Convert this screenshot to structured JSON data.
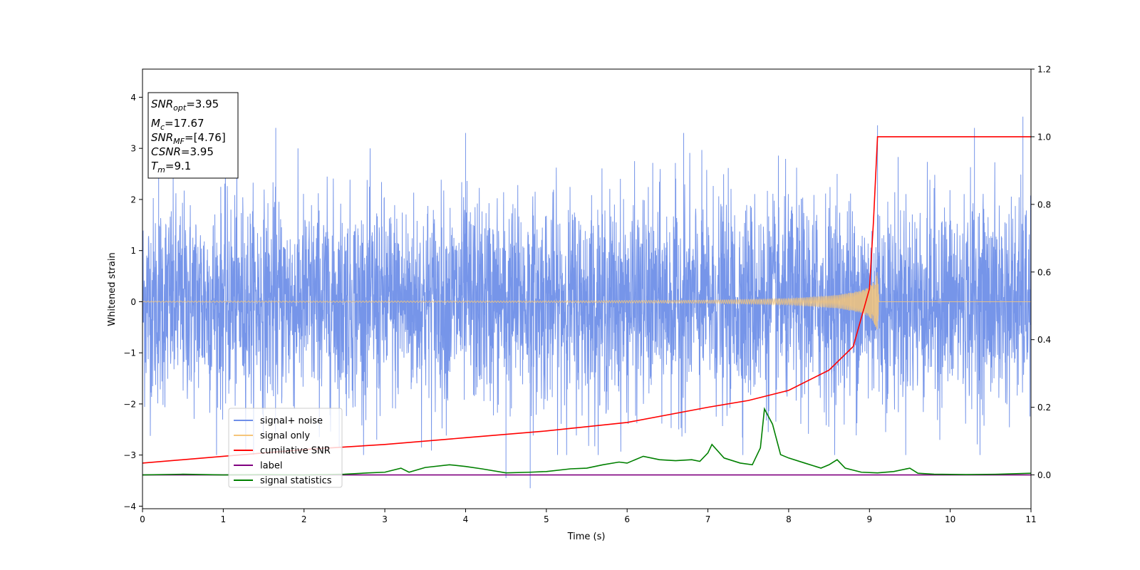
{
  "chart_data": {
    "type": "line",
    "xlabel": "Time (s)",
    "ylabel": "Whitened strain",
    "xlim": [
      0,
      11
    ],
    "ylim": [
      -4.05,
      4.55
    ],
    "y2lim": [
      -0.1,
      1.2
    ],
    "x_ticks": [
      "0",
      "1",
      "2",
      "3",
      "4",
      "5",
      "6",
      "7",
      "8",
      "9",
      "10",
      "11"
    ],
    "y_ticks": [
      "−4",
      "−3",
      "−2",
      "−1",
      "0",
      "1",
      "2",
      "3",
      "4"
    ],
    "y2_ticks": [
      "0.0",
      "0.2",
      "0.4",
      "0.6",
      "0.8",
      "1.0",
      "1.2"
    ],
    "grid": false,
    "legend_position": "lower-left",
    "annotation": {
      "snr_opt": {
        "label": "SNR",
        "sub": "opt",
        "value": "=3.95"
      },
      "mc": {
        "label": "M",
        "sub": "c",
        "value": "=17.67"
      },
      "snr_mf": {
        "label": "SNR",
        "sub": "MF",
        "value": "=[4.76]"
      },
      "csnr": {
        "label": "CSNR",
        "value": "=3.95"
      },
      "tm": {
        "label": "T",
        "sub": "m",
        "value": "=9.1"
      }
    },
    "series": [
      {
        "name": "signal+ noise",
        "color": "#6f8fe8",
        "axis": "left",
        "description_values": {
          "mean": 0,
          "std": 1,
          "range": [
            -3.65,
            3.62
          ]
        },
        "peaks": [
          [
            0.2,
            3.3
          ],
          [
            1.65,
            3.4
          ],
          [
            2.9,
            -2.7
          ],
          [
            4.0,
            3.3
          ],
          [
            4.5,
            -3.45
          ],
          [
            4.8,
            -3.65
          ],
          [
            6.7,
            3.3
          ],
          [
            8.6,
            2.5
          ],
          [
            9.1,
            3.45
          ],
          [
            10.3,
            3.4
          ],
          [
            10.9,
            3.62
          ]
        ]
      },
      {
        "name": "signal only",
        "color": "#f5c57a",
        "axis": "left",
        "amplitude_points": [
          [
            0,
            0.01
          ],
          [
            5,
            0.015
          ],
          [
            7,
            0.03
          ],
          [
            8,
            0.06
          ],
          [
            8.6,
            0.13
          ],
          [
            8.9,
            0.22
          ],
          [
            9.0,
            0.3
          ],
          [
            9.05,
            0.4
          ],
          [
            9.1,
            0.6
          ],
          [
            9.12,
            0.0
          ],
          [
            11,
            0.0
          ]
        ]
      },
      {
        "name": "cumilative SNR",
        "color": "#ff0000",
        "axis": "right",
        "points": [
          [
            0,
            0.035
          ],
          [
            1,
            0.055
          ],
          [
            2,
            0.075
          ],
          [
            3,
            0.09
          ],
          [
            4,
            0.11
          ],
          [
            5,
            0.13
          ],
          [
            6,
            0.155
          ],
          [
            7,
            0.2
          ],
          [
            7.5,
            0.22
          ],
          [
            8,
            0.25
          ],
          [
            8.5,
            0.31
          ],
          [
            8.8,
            0.38
          ],
          [
            9.0,
            0.55
          ],
          [
            9.05,
            0.75
          ],
          [
            9.1,
            1.0
          ],
          [
            11,
            1.0
          ]
        ]
      },
      {
        "name": "label",
        "color": "#800080",
        "axis": "right",
        "points": [
          [
            0,
            0.0
          ],
          [
            11,
            0.0
          ]
        ]
      },
      {
        "name": "signal statistics",
        "color": "#008000",
        "axis": "right",
        "points": [
          [
            0,
            0.0
          ],
          [
            0.5,
            0.002
          ],
          [
            1,
            0.0
          ],
          [
            1.5,
            0.001
          ],
          [
            2,
            0.0
          ],
          [
            2.5,
            0.002
          ],
          [
            2.8,
            0.006
          ],
          [
            3.0,
            0.008
          ],
          [
            3.2,
            0.02
          ],
          [
            3.3,
            0.008
          ],
          [
            3.5,
            0.022
          ],
          [
            3.8,
            0.03
          ],
          [
            4.0,
            0.025
          ],
          [
            4.2,
            0.018
          ],
          [
            4.5,
            0.006
          ],
          [
            4.8,
            0.008
          ],
          [
            5.0,
            0.01
          ],
          [
            5.3,
            0.018
          ],
          [
            5.5,
            0.02
          ],
          [
            5.7,
            0.03
          ],
          [
            5.9,
            0.038
          ],
          [
            6.0,
            0.035
          ],
          [
            6.2,
            0.055
          ],
          [
            6.4,
            0.045
          ],
          [
            6.6,
            0.042
          ],
          [
            6.8,
            0.045
          ],
          [
            6.9,
            0.04
          ],
          [
            7.0,
            0.065
          ],
          [
            7.05,
            0.09
          ],
          [
            7.2,
            0.05
          ],
          [
            7.4,
            0.035
          ],
          [
            7.55,
            0.03
          ],
          [
            7.65,
            0.08
          ],
          [
            7.7,
            0.195
          ],
          [
            7.8,
            0.15
          ],
          [
            7.9,
            0.06
          ],
          [
            8.0,
            0.05
          ],
          [
            8.2,
            0.035
          ],
          [
            8.4,
            0.02
          ],
          [
            8.5,
            0.03
          ],
          [
            8.6,
            0.045
          ],
          [
            8.7,
            0.02
          ],
          [
            8.9,
            0.008
          ],
          [
            9.1,
            0.006
          ],
          [
            9.3,
            0.01
          ],
          [
            9.5,
            0.02
          ],
          [
            9.6,
            0.005
          ],
          [
            9.8,
            0.002
          ],
          [
            10.2,
            0.001
          ],
          [
            10.6,
            0.002
          ],
          [
            11.0,
            0.005
          ]
        ]
      }
    ]
  }
}
